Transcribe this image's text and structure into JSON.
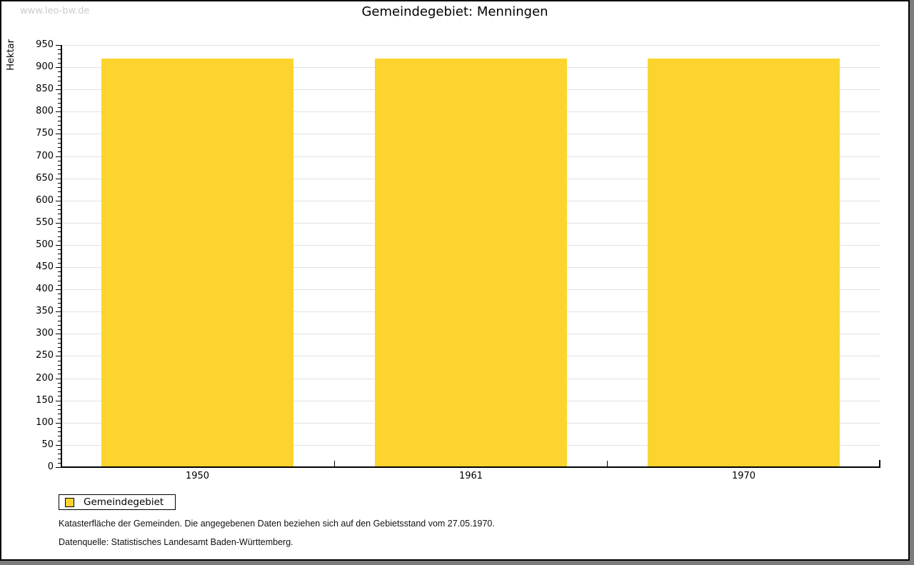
{
  "watermark": "www.leo-bw.de",
  "title": "Gemeindegebiet: Menningen",
  "chart_data": {
    "type": "bar",
    "title": "Gemeindegebiet: Menningen",
    "categories": [
      "1950",
      "1961",
      "1970"
    ],
    "series": [
      {
        "name": "Gemeindegebiet",
        "values": [
          918,
          918,
          918
        ]
      }
    ],
    "xlabel": "",
    "ylabel": "Hektar",
    "ylim": [
      0,
      950
    ],
    "y_major_step": 50,
    "y_minor_step": 10,
    "grid": "horizontal-major",
    "legend_position": "bottom-left",
    "bar_color": "#FCD42D"
  },
  "legend": {
    "items": [
      {
        "label": "Gemeindegebiet",
        "color": "#FCD42D"
      }
    ]
  },
  "footnotes": [
    "Katasterfläche der Gemeinden. Die angegebenen Daten beziehen sich auf den Gebietsstand vom 27.05.1970.",
    "Datenquelle: Statistisches Landesamt Baden-Württemberg."
  ]
}
